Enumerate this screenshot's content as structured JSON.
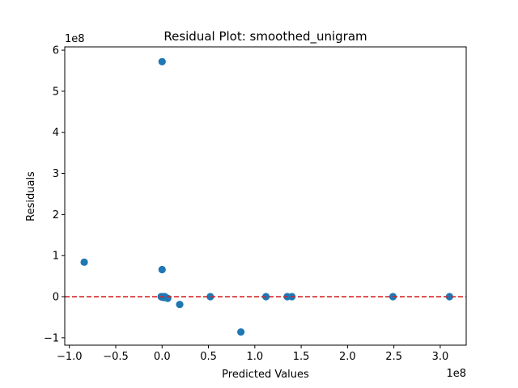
{
  "chart_data": {
    "type": "scatter",
    "title": "Residual Plot: smoothed_unigram",
    "xlabel": "Predicted Values",
    "ylabel": "Residuals",
    "x_offset_label": "1e8",
    "y_offset_label": "1e8",
    "xlim": [
      -1.05,
      3.28
    ],
    "ylim": [
      -1.18,
      6.08
    ],
    "x_ticks": [
      -1.0,
      -0.5,
      0.0,
      0.5,
      1.0,
      1.5,
      2.0,
      2.5,
      3.0
    ],
    "x_tick_labels": [
      "−1.0",
      "−0.5",
      "0.0",
      "0.5",
      "1.0",
      "1.5",
      "2.0",
      "2.5",
      "3.0"
    ],
    "y_ticks": [
      -1,
      0,
      1,
      2,
      3,
      4,
      5,
      6
    ],
    "y_tick_labels": [
      "−1",
      "0",
      "1",
      "2",
      "3",
      "4",
      "5",
      "6"
    ],
    "reference_line": {
      "y": 0,
      "color": "#d62728",
      "style": "dashed"
    },
    "marker_color": "#1f77b4",
    "grid": false,
    "points": [
      {
        "x": -0.84,
        "y": 0.84
      },
      {
        "x": 0.0,
        "y": 5.72
      },
      {
        "x": 0.0,
        "y": 0.66
      },
      {
        "x": -0.01,
        "y": 0.0
      },
      {
        "x": 0.0,
        "y": -0.01
      },
      {
        "x": 0.01,
        "y": 0.0
      },
      {
        "x": 0.02,
        "y": -0.02
      },
      {
        "x": 0.03,
        "y": 0.0
      },
      {
        "x": 0.06,
        "y": -0.04
      },
      {
        "x": 0.19,
        "y": -0.19
      },
      {
        "x": 0.52,
        "y": 0.0
      },
      {
        "x": 0.85,
        "y": -0.86
      },
      {
        "x": 1.12,
        "y": 0.0
      },
      {
        "x": 1.35,
        "y": 0.0
      },
      {
        "x": 1.4,
        "y": 0.0
      },
      {
        "x": 2.49,
        "y": 0.0
      },
      {
        "x": 3.1,
        "y": 0.0
      }
    ]
  }
}
